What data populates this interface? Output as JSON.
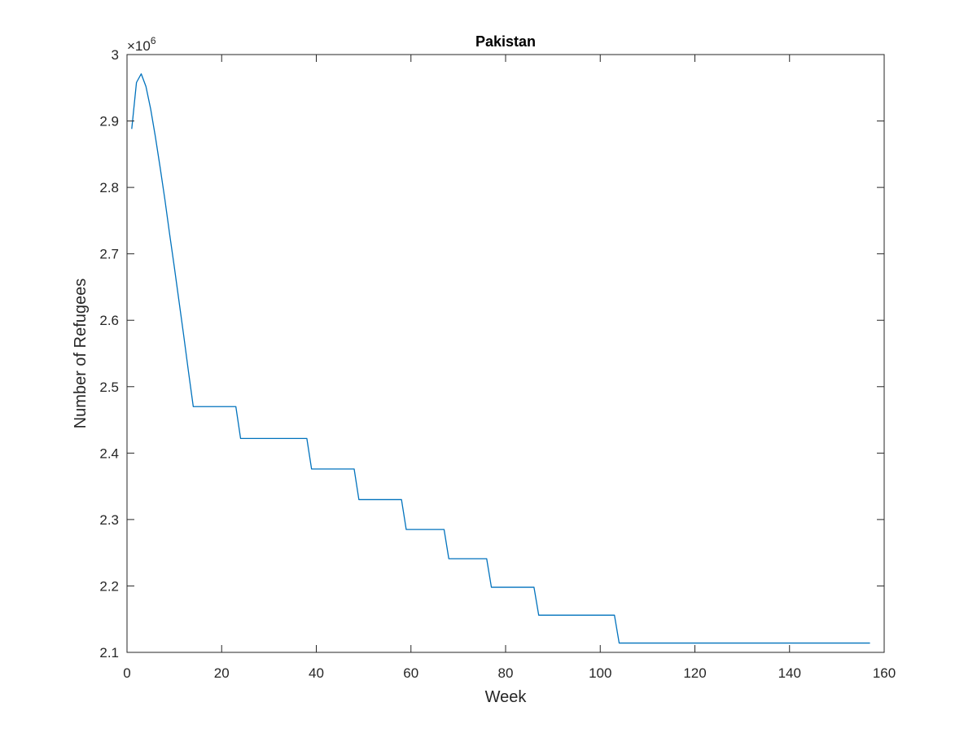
{
  "chart_data": {
    "type": "line",
    "title": "Pakistan",
    "xlabel": "Week",
    "ylabel": "Number of Refugees",
    "y_exponent_prefix": "×10",
    "y_exponent_power": "6",
    "xlim": [
      0,
      160
    ],
    "ylim": [
      2.1,
      3.0
    ],
    "xticks": [
      0,
      20,
      40,
      60,
      80,
      100,
      120,
      140,
      160
    ],
    "xtick_labels": [
      "0",
      "20",
      "40",
      "60",
      "80",
      "100",
      "120",
      "140",
      "160"
    ],
    "yticks": [
      2.1,
      2.2,
      2.3,
      2.4,
      2.5,
      2.6,
      2.7,
      2.8,
      2.9,
      3.0
    ],
    "ytick_labels": [
      "2.1",
      "2.2",
      "2.3",
      "2.4",
      "2.5",
      "2.6",
      "2.7",
      "2.8",
      "2.9",
      "3"
    ],
    "grid": false,
    "series": [
      {
        "color": "#0072BD",
        "x": [
          1,
          2,
          3,
          4,
          5,
          6,
          7,
          8,
          9,
          10,
          11,
          12,
          13,
          14,
          23,
          24,
          38,
          39,
          48,
          49,
          58,
          59,
          67,
          68,
          76,
          77,
          86,
          87,
          103,
          104,
          157
        ],
        "y": [
          2.888,
          2.958,
          2.971,
          2.952,
          2.918,
          2.876,
          2.83,
          2.782,
          2.73,
          2.68,
          2.628,
          2.576,
          2.522,
          2.47,
          2.47,
          2.422,
          2.422,
          2.376,
          2.376,
          2.33,
          2.33,
          2.285,
          2.285,
          2.241,
          2.241,
          2.198,
          2.198,
          2.156,
          2.156,
          2.114,
          2.114
        ]
      }
    ]
  }
}
